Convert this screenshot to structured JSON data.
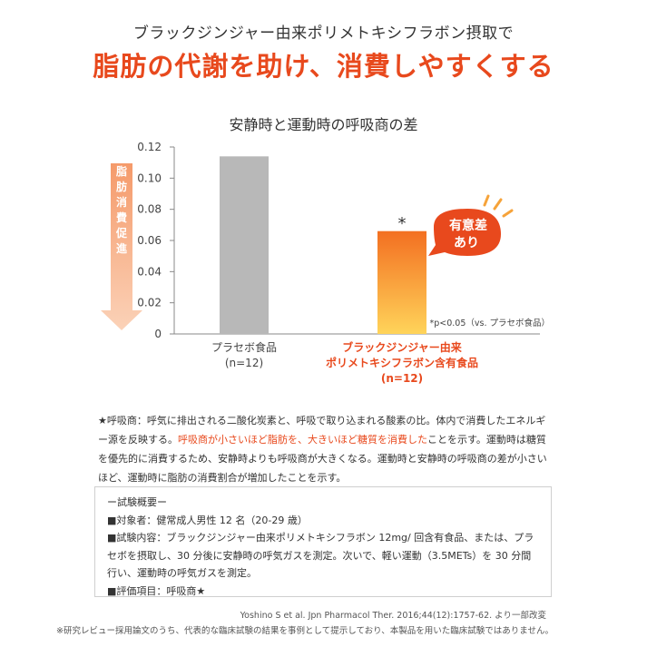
{
  "header": {
    "subtitle": "ブラックジンジャー由来ポリメトキシフラボン摂取で",
    "title": "脂肪の代謝を助け、消費しやすくする"
  },
  "chart_data": {
    "type": "bar",
    "title": "安静時と運動時の呼吸商の差",
    "categories": [
      {
        "line1": "プラセボ食品",
        "line2": "",
        "line3": "(n=12)"
      },
      {
        "line1": "ブラックジンジャー由来",
        "line2": "ポリメトキシフラボン含有食品",
        "line3": "(n=12)"
      }
    ],
    "values": [
      0.114,
      0.066
    ],
    "ylim": [
      0,
      0.12
    ],
    "yticks": [
      "0",
      "0.02",
      "0.04",
      "0.06",
      "0.08",
      "0.10",
      "0.12"
    ],
    "ytick_values": [
      0,
      0.02,
      0.04,
      0.06,
      0.08,
      0.1,
      0.12
    ],
    "grid": false,
    "colors": {
      "placebo": "#b8b8b8",
      "test_top": "#f36f21",
      "test_bottom": "#ffd45a",
      "accent": "#e8491d",
      "arrow_top": "#f59a6a",
      "arrow_bottom": "#fbd2b8"
    },
    "arrow_label": "脂肪消費促進",
    "significance_mark": "*",
    "badge_line1": "有意差",
    "badge_line2": "あり",
    "pvalue_note": "*p<0.05（vs. プラセボ食品）"
  },
  "footnote": {
    "part1": "★呼吸商：呼気に排出される二酸化炭素と、呼吸で取り込まれる酸素の比。体内で消費したエネルギー源を反映する。",
    "highlight": "呼吸商が小さいほど脂肪を、大きいほど糖質を消費した",
    "part2": "ことを示す。運動時は糖質を優先的に消費するため、安静時よりも呼吸商が大きくなる。運動時と安静時の呼吸商の差が小さいほど、運動時に脂肪の消費割合が増加したことを示す。"
  },
  "summary": {
    "heading": "ー試験概要ー",
    "subjects": "■対象者：健常成人男性 12 名（20-29 歳）",
    "content": "■試験内容：ブラックジンジャー由来ポリメトキシフラボン 12mg/ 回含有食品、または、プラセボを摂取し、30 分後に安静時の呼気ガスを測定。次いで、軽い運動（3.5METs）を 30 分間行い、運動時の呼気ガスを測定。",
    "evaluation": "■評価項目：呼吸商★"
  },
  "citation": "Yoshino S et al. Jpn Pharmacol Ther. 2016;44(12):1757-62. より一部改変",
  "disclaimer": "※研究レビュー採用論文のうち、代表的な臨床試験の結果を事例として提示しており、本製品を用いた臨床試験ではありません。"
}
